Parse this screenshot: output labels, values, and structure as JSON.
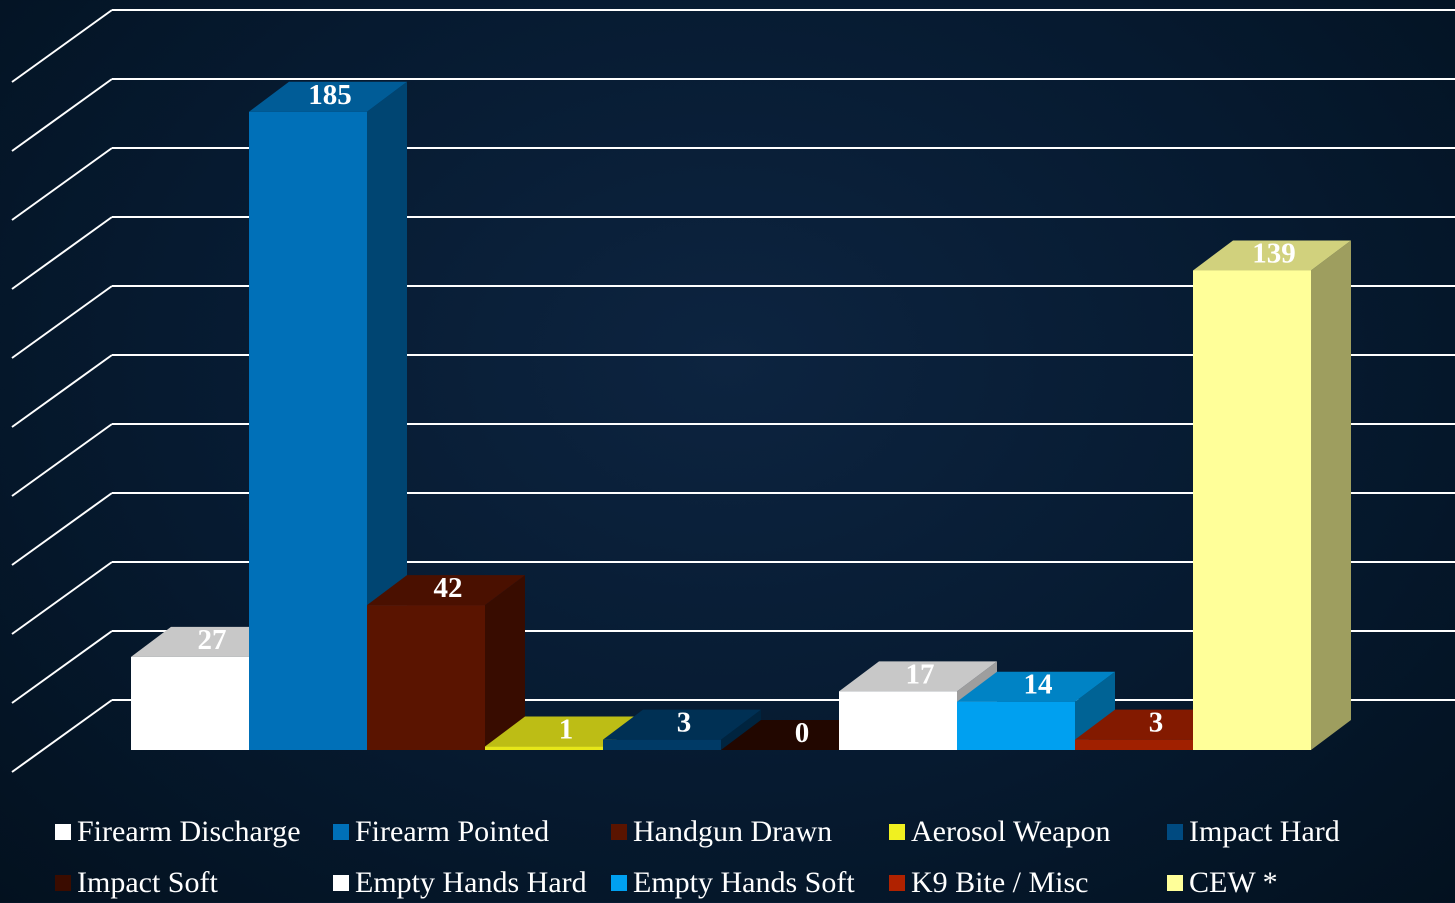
{
  "chart_data": {
    "type": "bar",
    "style": "3d",
    "categories": [
      "Firearm Discharge",
      "Firearm Pointed",
      "Handgun Drawn",
      "Aerosol Weapon",
      "Impact Hard",
      "Impact Soft",
      "Empty Hands Hard",
      "Empty Hands Soft",
      "K9 Bite / Misc",
      "CEW *"
    ],
    "values": [
      27,
      185,
      42,
      1,
      3,
      0,
      17,
      14,
      3,
      139
    ],
    "value_labels": [
      "27",
      "185",
      "42",
      "1",
      "3",
      "0",
      "17",
      "14",
      "3",
      "139"
    ],
    "colors": [
      "#ffffff",
      "#0070b8",
      "#5a1400",
      "#e6e619",
      "#003a66",
      "#2a0800",
      "#ffffff",
      "#00a0f0",
      "#a02000",
      "#ffff99"
    ],
    "ylim": [
      0,
      200
    ],
    "grid": true,
    "legend_position": "bottom",
    "title": "",
    "xlabel": "",
    "ylabel": ""
  },
  "legend": {
    "items": [
      {
        "label": "Firearm Discharge",
        "color": "#ffffff"
      },
      {
        "label": "Firearm Pointed",
        "color": "#0070b8"
      },
      {
        "label": "Handgun Drawn",
        "color": "#5a1400"
      },
      {
        "label": "Aerosol Weapon",
        "color": "#f0f020"
      },
      {
        "label": "Impact Hard",
        "color": "#004a80"
      },
      {
        "label": "Impact Soft",
        "color": "#3a0c00"
      },
      {
        "label": "Empty Hands Hard",
        "color": "#ffffff"
      },
      {
        "label": "Empty Hands Soft",
        "color": "#00a0f0"
      },
      {
        "label": "K9 Bite / Misc",
        "color": "#b02200"
      },
      {
        "label": "CEW *",
        "color": "#ffff99"
      }
    ]
  }
}
